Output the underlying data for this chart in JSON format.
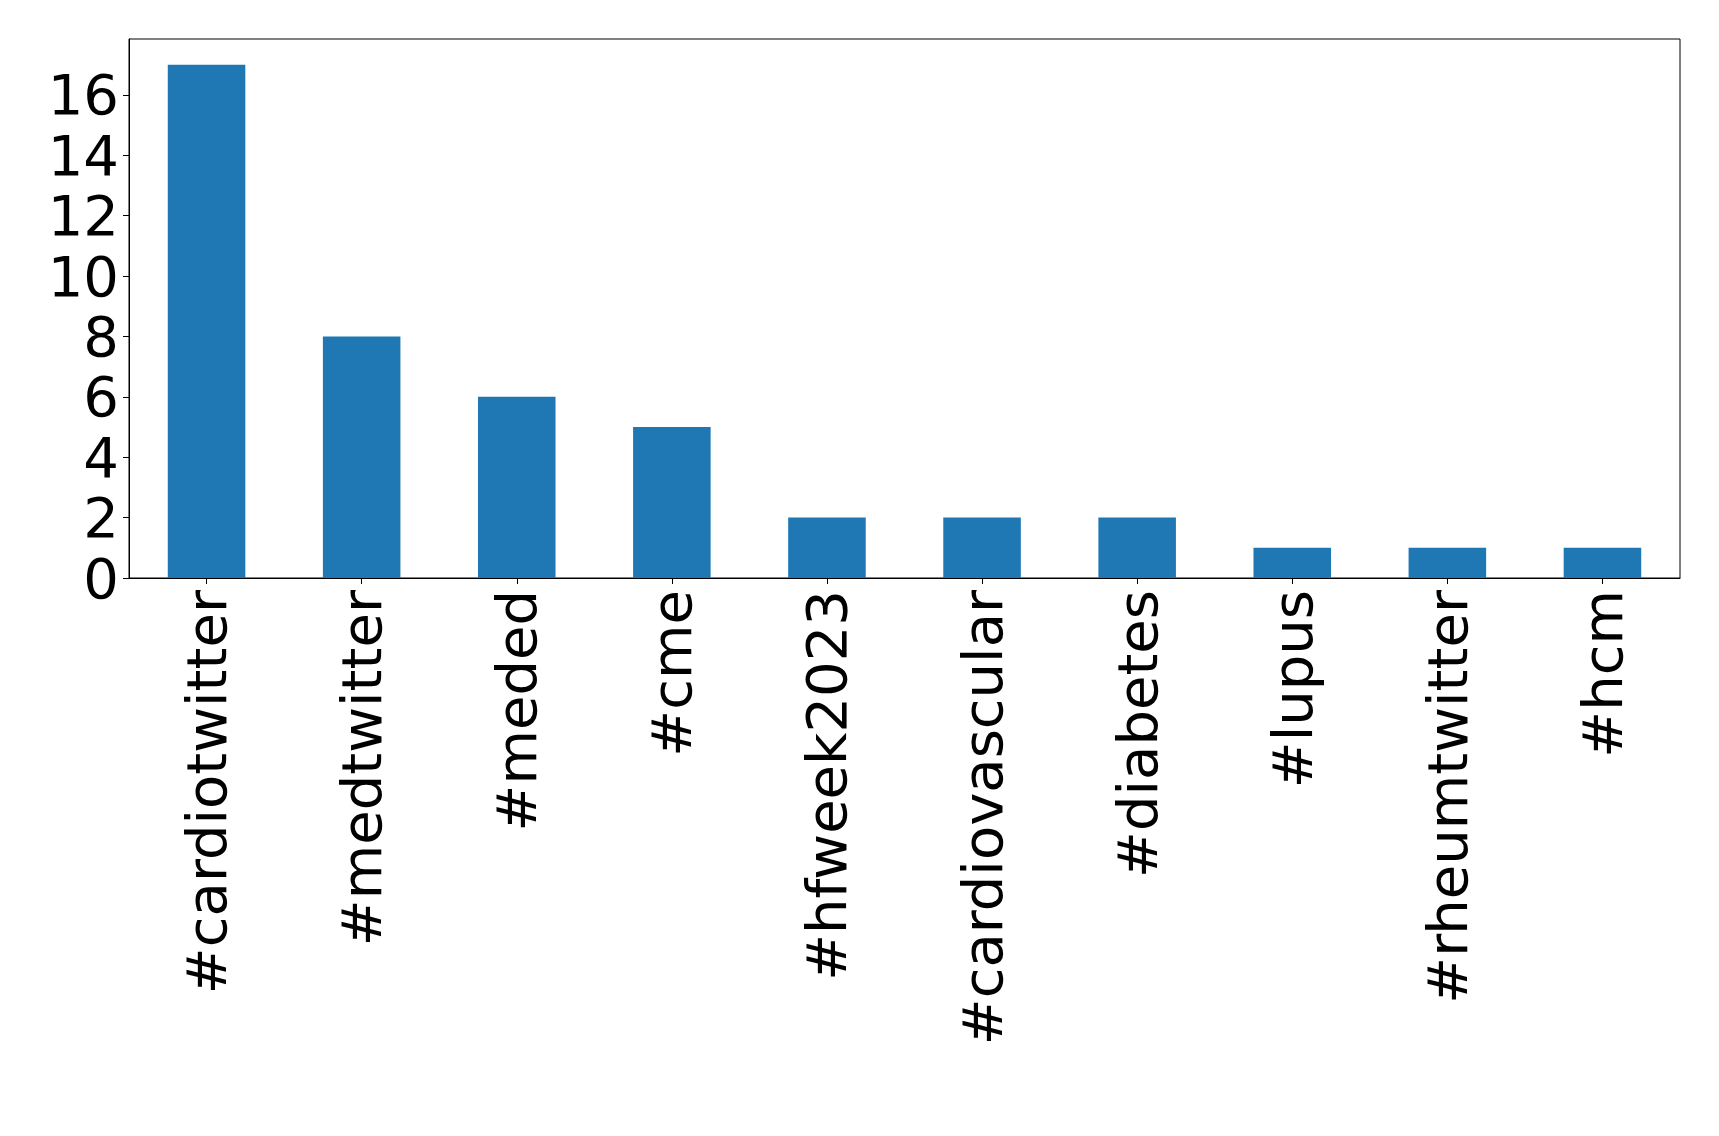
{
  "chart_data": {
    "type": "bar",
    "categories": [
      "#cardiotwitter",
      "#medtwitter",
      "#meded",
      "#cme",
      "#hfweek2023",
      "#cardiovascular",
      "#diabetes",
      "#lupus",
      "#rheumtwitter",
      "#hcm"
    ],
    "values": [
      17,
      8,
      6,
      5,
      2,
      2,
      2,
      1,
      1,
      1
    ],
    "color": "#1f77b4",
    "ylim": [
      0,
      17.85
    ],
    "yticks": [
      0,
      2,
      4,
      6,
      8,
      10,
      12,
      14,
      16
    ],
    "grid": false
  }
}
